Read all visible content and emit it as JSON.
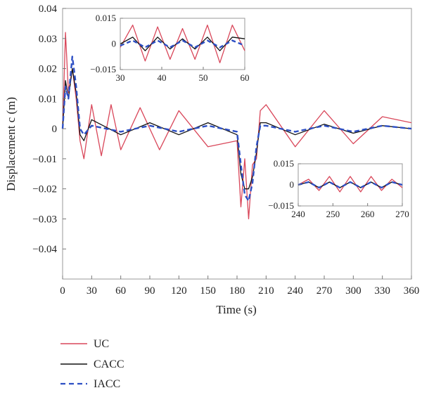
{
  "chart_data": {
    "type": "line",
    "title": "",
    "xlabel": "Time (s)",
    "ylabel": "Displacement c (m)",
    "xlim": [
      0,
      360
    ],
    "ylim": [
      -0.05,
      0.04
    ],
    "x_ticks": [
      0,
      30,
      60,
      90,
      120,
      150,
      180,
      210,
      240,
      270,
      300,
      330,
      360
    ],
    "x_tick_labels": [
      "0",
      "30",
      "60",
      "90",
      "120",
      "150",
      "180",
      "210",
      "240",
      "270",
      "300",
      "330",
      "360"
    ],
    "y_ticks": [
      0.04,
      0.03,
      0.02,
      0.01,
      0,
      -0.01,
      -0.02,
      -0.03,
      -0.04
    ],
    "y_tick_labels": [
      "0.04",
      "0.03",
      "0.02",
      "0.01",
      "0",
      "−0.01",
      "−0.02",
      "−0.03",
      "−0.04"
    ],
    "grid": false,
    "legend_position": "below-left",
    "colors": {
      "UC": "#d9475a",
      "CACC": "#111111",
      "IACC": "#2d4fc4"
    },
    "series": [
      {
        "name": "UC",
        "style": "solid",
        "x": [
          0,
          3,
          6,
          10,
          14,
          18,
          22,
          30,
          40,
          50,
          60,
          80,
          100,
          120,
          150,
          180,
          184,
          188,
          192,
          196,
          200,
          204,
          210,
          240,
          270,
          300,
          330,
          360
        ],
        "y": [
          0,
          0.032,
          0.012,
          0.02,
          0.01,
          -0.004,
          -0.01,
          0.008,
          -0.009,
          0.008,
          -0.007,
          0.007,
          -0.007,
          0.006,
          -0.006,
          -0.004,
          -0.026,
          -0.01,
          -0.03,
          -0.012,
          -0.01,
          0.006,
          0.008,
          -0.006,
          0.006,
          -0.005,
          0.004,
          0.002
        ]
      },
      {
        "name": "CACC",
        "style": "solid",
        "x": [
          0,
          3,
          6,
          10,
          14,
          18,
          22,
          30,
          60,
          90,
          120,
          150,
          180,
          184,
          188,
          192,
          196,
          200,
          204,
          210,
          240,
          270,
          300,
          330,
          360
        ],
        "y": [
          0,
          0.016,
          0.01,
          0.02,
          0.012,
          -0.002,
          -0.004,
          0.003,
          -0.002,
          0.002,
          -0.002,
          0.002,
          -0.002,
          -0.015,
          -0.02,
          -0.02,
          -0.016,
          -0.008,
          0.002,
          0.002,
          -0.002,
          0.0015,
          -0.0015,
          0.001,
          0
        ]
      },
      {
        "name": "IACC",
        "style": "dashed",
        "x": [
          0,
          3,
          6,
          10,
          14,
          18,
          22,
          30,
          60,
          90,
          120,
          150,
          180,
          184,
          188,
          192,
          196,
          200,
          204,
          210,
          240,
          270,
          300,
          330,
          360
        ],
        "y": [
          0,
          0.014,
          0.01,
          0.024,
          0.014,
          0,
          -0.002,
          0.001,
          -0.001,
          0.001,
          -0.001,
          0.001,
          -0.001,
          -0.012,
          -0.022,
          -0.024,
          -0.018,
          -0.006,
          0.001,
          0.001,
          -0.001,
          0.001,
          -0.001,
          0.001,
          0
        ]
      }
    ],
    "insets": [
      {
        "xlim": [
          30,
          60
        ],
        "ylim": [
          -0.015,
          0.015
        ],
        "x_ticks": [
          30,
          40,
          50,
          60
        ],
        "x_tick_labels": [
          "30",
          "40",
          "50",
          "60"
        ],
        "y_ticks": [
          0.015,
          0,
          -0.015
        ],
        "y_tick_labels": [
          "0.015",
          "0",
          "−0.015"
        ],
        "series": [
          {
            "name": "UC",
            "x": [
              30,
              33,
              36,
              39,
              42,
              45,
              48,
              51,
              54,
              57,
              60
            ],
            "y": [
              -0.002,
              0.011,
              -0.01,
              0.01,
              -0.009,
              0.009,
              -0.009,
              0.011,
              -0.011,
              0.011,
              -0.004
            ]
          },
          {
            "name": "CACC",
            "x": [
              30,
              33,
              36,
              39,
              42,
              45,
              48,
              51,
              54,
              57,
              60
            ],
            "y": [
              0,
              0.004,
              -0.004,
              0.004,
              -0.003,
              0.003,
              -0.003,
              0.004,
              -0.004,
              0.004,
              0.003
            ]
          },
          {
            "name": "IACC",
            "x": [
              30,
              33,
              36,
              39,
              42,
              45,
              48,
              51,
              54,
              57,
              60
            ],
            "y": [
              -0.001,
              0.002,
              -0.002,
              0.002,
              -0.002,
              0.002,
              -0.002,
              0.002,
              -0.002,
              0.002,
              -0.001
            ]
          }
        ]
      },
      {
        "xlim": [
          240,
          270
        ],
        "ylim": [
          -0.015,
          0.015
        ],
        "x_ticks": [
          240,
          250,
          260,
          270
        ],
        "x_tick_labels": [
          "240",
          "250",
          "260",
          "270"
        ],
        "y_ticks": [
          0.015,
          0,
          -0.015
        ],
        "y_tick_labels": [
          "0.015",
          "0",
          "−0.015"
        ],
        "series": [
          {
            "name": "UC",
            "x": [
              240,
              243,
              246,
              249,
              252,
              255,
              258,
              261,
              264,
              267,
              270
            ],
            "y": [
              0,
              0.004,
              -0.004,
              0.006,
              -0.005,
              0.006,
              -0.005,
              0.006,
              -0.004,
              0.004,
              -0.002
            ]
          },
          {
            "name": "CACC",
            "x": [
              240,
              243,
              246,
              249,
              252,
              255,
              258,
              261,
              264,
              267,
              270
            ],
            "y": [
              0,
              0.002,
              -0.002,
              0.002,
              -0.002,
              0.002,
              -0.002,
              0.002,
              -0.002,
              0.002,
              0
            ]
          },
          {
            "name": "IACC",
            "x": [
              240,
              243,
              246,
              249,
              252,
              255,
              258,
              261,
              264,
              267,
              270
            ],
            "y": [
              0,
              0.002,
              -0.002,
              0.002,
              -0.002,
              0.002,
              -0.002,
              0.002,
              -0.002,
              0.002,
              0
            ]
          }
        ]
      }
    ]
  }
}
